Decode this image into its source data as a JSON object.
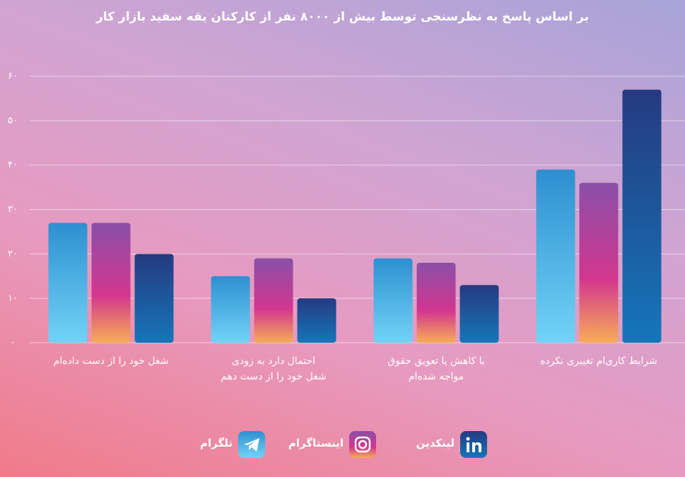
{
  "chart_data": {
    "type": "bar",
    "title": "بر اساس پاسخ به نظرسنجی توسط بیش از ۸۰۰۰ نفر از کارکنان یقه سفید بازار کار",
    "categories": [
      "شغل خود را از دست داده‌ام",
      "احتمال دارد به زودی\nشغل خود را از دست دهم",
      "با کاهش یا تعویق حقوق\nمواجه شده‌ام",
      "شرایط کاری‌ام تغییری نکرده"
    ],
    "series": [
      {
        "name": "تلگرام",
        "color": "#2e8fd0",
        "values": [
          27,
          15,
          19,
          39
        ]
      },
      {
        "name": "اینستاگرام",
        "color": "#8a4fa8",
        "values": [
          27,
          19,
          18,
          36
        ]
      },
      {
        "name": "لینکدین",
        "color": "#253a80",
        "values": [
          20,
          10,
          13,
          57
        ]
      }
    ],
    "ylim": [
      0,
      60
    ],
    "yticks": [
      {
        "value": 0,
        "label": "۰"
      },
      {
        "value": 10,
        "label": "۱۰"
      },
      {
        "value": 20,
        "label": "۲۰"
      },
      {
        "value": 30,
        "label": "۳۰"
      },
      {
        "value": 40,
        "label": "۴۰"
      },
      {
        "value": 50,
        "label": "۵۰"
      },
      {
        "value": 60,
        "label": "۶۰"
      }
    ],
    "grid": true
  }
}
